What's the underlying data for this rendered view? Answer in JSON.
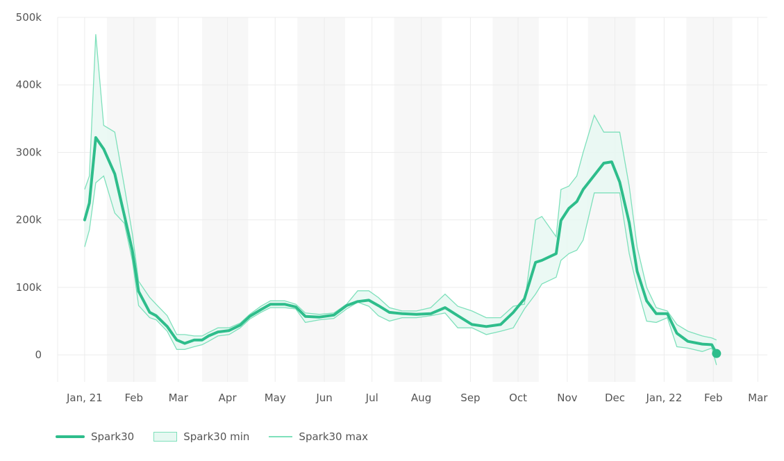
{
  "chart_data": {
    "type": "line",
    "xlabel": "",
    "ylabel": "",
    "x_range": [
      "2020-12-15",
      "2022-03-07"
    ],
    "ylim": [
      -40000,
      500000
    ],
    "y_ticks": [
      0,
      100000,
      200000,
      300000,
      400000,
      500000
    ],
    "y_tick_labels": [
      "0",
      "100k",
      "200k",
      "300k",
      "400k",
      "500k"
    ],
    "x_ticks": [
      "2021-01-01",
      "2021-02-01",
      "2021-03-01",
      "2021-04-01",
      "2021-05-01",
      "2021-06-01",
      "2021-07-01",
      "2021-08-01",
      "2021-09-01",
      "2021-10-01",
      "2021-11-01",
      "2021-12-01",
      "2022-01-01",
      "2022-02-01",
      "2022-03-01"
    ],
    "x_tick_labels": [
      "Jan, 21",
      "Feb",
      "Mar",
      "Apr",
      "May",
      "Jun",
      "Jul",
      "Aug",
      "Sep",
      "Oct",
      "Nov",
      "Dec",
      "Jan, 22",
      "Feb",
      "Mar"
    ],
    "grid": true,
    "legend_position": "bottom-left",
    "shaded_ranges": [
      [
        "2021-01-15",
        "2021-02-15"
      ],
      [
        "2021-03-16",
        "2021-04-14"
      ],
      [
        "2021-05-15",
        "2021-06-14"
      ],
      [
        "2021-07-15",
        "2021-08-14"
      ],
      [
        "2021-09-15",
        "2021-10-14"
      ],
      [
        "2021-11-14",
        "2021-12-14"
      ],
      [
        "2022-01-15",
        "2022-02-13"
      ]
    ],
    "x": [
      "2021-01-01",
      "2021-01-04",
      "2021-01-08",
      "2021-01-13",
      "2021-01-20",
      "2021-01-26",
      "2021-01-31",
      "2021-02-04",
      "2021-02-11",
      "2021-02-15",
      "2021-02-22",
      "2021-02-28",
      "2021-03-05",
      "2021-03-11",
      "2021-03-16",
      "2021-03-20",
      "2021-03-26",
      "2021-04-02",
      "2021-04-09",
      "2021-04-15",
      "2021-04-22",
      "2021-04-28",
      "2021-05-07",
      "2021-05-14",
      "2021-05-20",
      "2021-05-29",
      "2021-06-07",
      "2021-06-15",
      "2021-06-22",
      "2021-06-29",
      "2021-07-05",
      "2021-07-12",
      "2021-07-20",
      "2021-07-29",
      "2021-08-07",
      "2021-08-16",
      "2021-08-24",
      "2021-09-02",
      "2021-09-11",
      "2021-09-20",
      "2021-09-28",
      "2021-10-05",
      "2021-10-12",
      "2021-10-16",
      "2021-10-25",
      "2021-10-28",
      "2021-11-02",
      "2021-11-07",
      "2021-11-11",
      "2021-11-18",
      "2021-11-24",
      "2021-11-29",
      "2021-12-04",
      "2021-12-10",
      "2021-12-15",
      "2021-12-21",
      "2021-12-27",
      "2022-01-03",
      "2022-01-09",
      "2022-01-16",
      "2022-01-25",
      "2022-01-31",
      "2022-02-03"
    ],
    "series": [
      {
        "name": "Spark30",
        "color": "#2ebd8b",
        "values": [
          200000,
          225000,
          322000,
          305000,
          268000,
          207000,
          155000,
          94000,
          63000,
          58000,
          42000,
          22000,
          17000,
          22000,
          22000,
          28000,
          34000,
          36000,
          44000,
          57000,
          67000,
          75000,
          75000,
          71000,
          57000,
          56000,
          59000,
          73000,
          79000,
          81000,
          73000,
          63000,
          61000,
          60000,
          61000,
          70000,
          58000,
          45000,
          42000,
          45000,
          63000,
          83000,
          137000,
          140000,
          150000,
          199000,
          217000,
          227000,
          245000,
          266000,
          284000,
          286000,
          256000,
          196000,
          124000,
          80000,
          61000,
          61000,
          32000,
          20000,
          16000,
          15000,
          2000
        ]
      },
      {
        "name": "Spark30 min",
        "color": "#7ee0bb",
        "values": [
          160000,
          185000,
          255000,
          265000,
          210000,
          195000,
          140000,
          73000,
          55000,
          52000,
          35000,
          8000,
          8000,
          12000,
          15000,
          20000,
          28000,
          30000,
          40000,
          53000,
          63000,
          70000,
          70000,
          68000,
          48000,
          52000,
          54000,
          68000,
          78000,
          72000,
          58000,
          50000,
          55000,
          55000,
          58000,
          62000,
          40000,
          40000,
          30000,
          35000,
          40000,
          68000,
          90000,
          105000,
          115000,
          140000,
          150000,
          155000,
          170000,
          240000,
          240000,
          240000,
          240000,
          150000,
          100000,
          50000,
          48000,
          55000,
          12000,
          10000,
          5000,
          10000,
          -15000
        ]
      },
      {
        "name": "Spark30 max",
        "color": "#7ee0bb",
        "values": [
          245000,
          265000,
          475000,
          340000,
          330000,
          250000,
          180000,
          109000,
          85000,
          75000,
          58000,
          30000,
          30000,
          28000,
          28000,
          33000,
          40000,
          40000,
          47000,
          60000,
          72000,
          80000,
          80000,
          75000,
          62000,
          60000,
          62000,
          75000,
          95000,
          95000,
          85000,
          70000,
          65000,
          65000,
          70000,
          90000,
          72000,
          65000,
          55000,
          55000,
          72000,
          75000,
          200000,
          205000,
          175000,
          245000,
          250000,
          265000,
          300000,
          355000,
          330000,
          330000,
          330000,
          250000,
          160000,
          100000,
          70000,
          65000,
          45000,
          35000,
          28000,
          25000,
          22000
        ]
      }
    ],
    "band_fill": "#e6f8f1",
    "shade_color": "#f7f7f7",
    "grid_color": "#ececec"
  },
  "legend": [
    {
      "label": "Spark30"
    },
    {
      "label": "Spark30 min"
    },
    {
      "label": "Spark30 max"
    }
  ]
}
